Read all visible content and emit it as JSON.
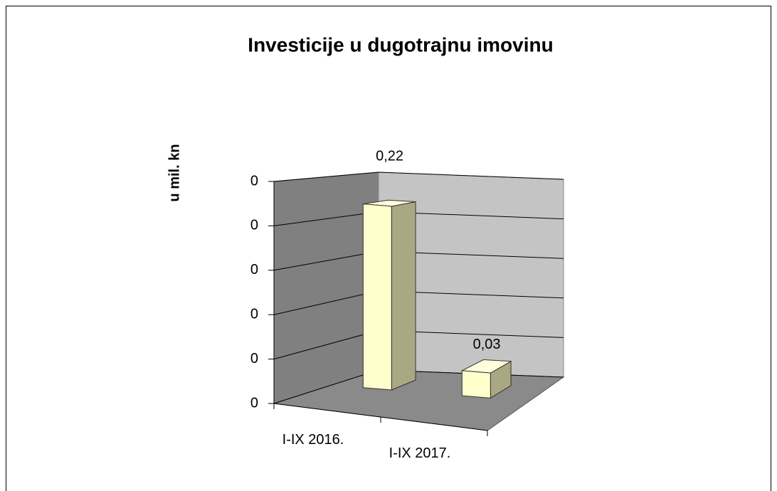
{
  "chart_data": {
    "type": "bar3d",
    "title": "Investicije u dugotrajnu imovinu",
    "y_label": "u mil. kn",
    "categories": [
      "I-IX 2016.",
      "I-IX 2017."
    ],
    "values": [
      0.22,
      0.03
    ],
    "value_labels": [
      "0,22",
      "0,03"
    ],
    "color": "#ffffcc",
    "ylim": [
      0,
      0.25
    ],
    "yticks": [
      0,
      {
        "value": 0.05,
        "label": "0"
      },
      {
        "value": 0.1,
        "label": "0"
      },
      {
        "value": 0.15,
        "label": "0"
      },
      {
        "value": 0.2,
        "label": "0"
      },
      {
        "value": 0.25,
        "label": "0"
      }
    ],
    "grid": true
  }
}
